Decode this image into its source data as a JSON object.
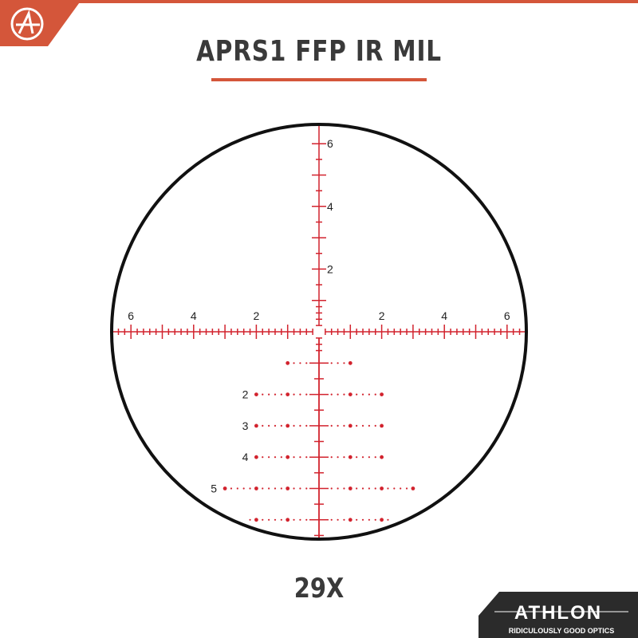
{
  "header": {
    "title": "APRS1 FFP IR MIL"
  },
  "footer": {
    "magnification": "29X"
  },
  "brand": {
    "name": "ATHLON",
    "tagline": "RIDICULOUSLY GOOD OPTICS",
    "logo_letter": "A"
  },
  "reticle": {
    "horizontal_labels": [
      "6",
      "4",
      "2",
      "2",
      "4",
      "6"
    ],
    "vertical_labels": [
      "6",
      "4",
      "2"
    ],
    "holdover_labels": [
      "2",
      "3",
      "4",
      "5"
    ]
  },
  "colors": {
    "reticle": "#d2232e",
    "accent": "#d4563a",
    "text": "#3a3a3a",
    "panel": "#2b2b2b"
  }
}
